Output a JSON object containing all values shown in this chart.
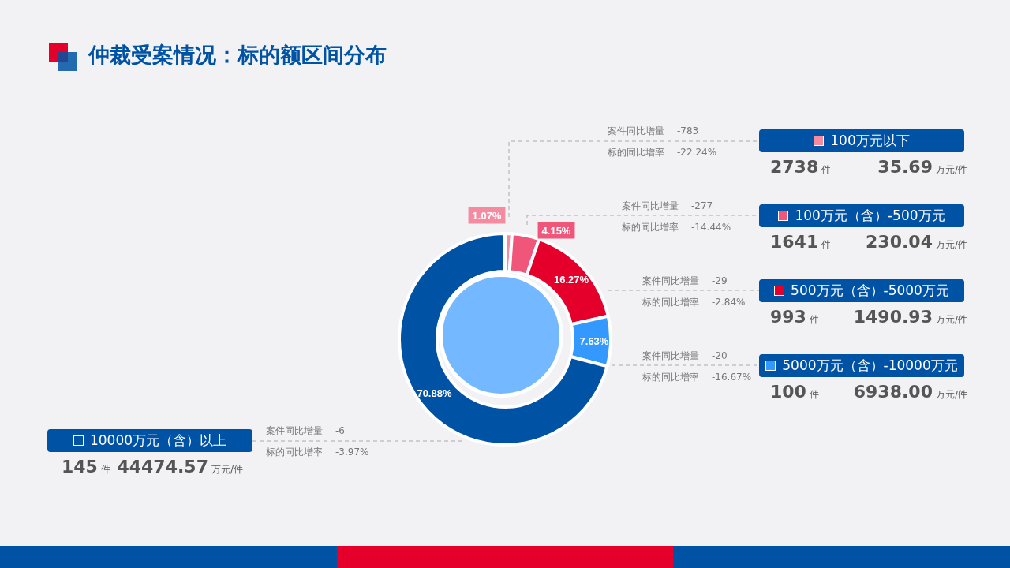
{
  "chart_data": {
    "type": "donut",
    "title": "仲裁受案情况：标的额区间分布",
    "categories": [
      "100万元以下",
      "100万元（含）-500万元",
      "500万元（含）-5000万元",
      "5000万元（含）-10000万元",
      "10000万元（含）以上"
    ],
    "values": [
      1.07,
      4.15,
      16.27,
      7.63,
      70.88
    ],
    "colors": [
      "#f48ba0",
      "#f0557a",
      "#e4002b",
      "#3399ff",
      "#0052a5"
    ],
    "legend": "right",
    "value_labels": [
      "1.07%",
      "4.15%",
      "16.27%",
      "7.63%",
      "70.88%"
    ],
    "annotations": [
      "案件同比增量 -783",
      "标的同比增率 -22.24%",
      "2738 件",
      "35.69 万元/件",
      "案件同比增量 -277",
      "标的同比增率 -14.44%",
      "1641 件",
      "230.04 万元/件",
      "案件同比增量 -29",
      "标的同比增率 -2.84%",
      "993 件",
      "1490.93 万元/件",
      "案件同比增量 -20",
      "标的同比增率 -16.67%",
      "100 件",
      "6938.00 万元/件",
      "案件同比增量 -6",
      "标的同比增率 -3.97%",
      "145 件",
      "44474.57 万元/件"
    ]
  }
}
